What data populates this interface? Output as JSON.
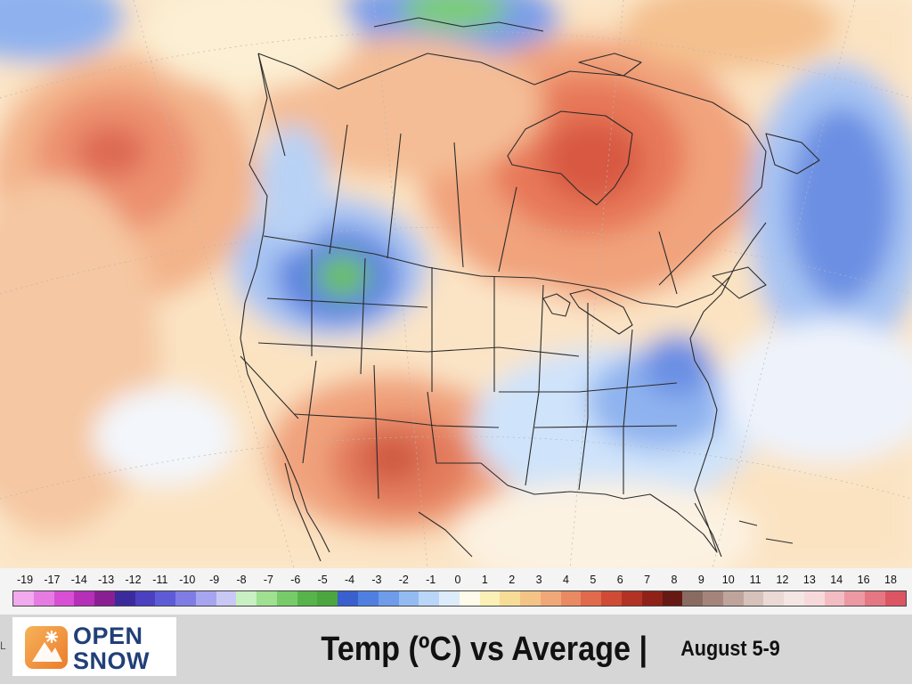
{
  "map": {
    "region": "North America",
    "anomaly_zones": [
      {
        "area": "Central North Pacific",
        "level": "warm",
        "peak_value": 7
      },
      {
        "area": "Eastern Canada / Hudson Bay",
        "level": "warm",
        "peak_value": 7
      },
      {
        "area": "Southwest US / New Mexico",
        "level": "warm",
        "peak_value": 7
      },
      {
        "area": "Northern Rockies / Montana-Idaho",
        "level": "cold",
        "peak_value": -6
      },
      {
        "area": "Western Arctic",
        "level": "cold",
        "peak_value": -6
      },
      {
        "area": "Southeast US / Virginia-Carolinas",
        "level": "cold",
        "peak_value": -3
      },
      {
        "area": "Western Atlantic off Canada",
        "level": "cold",
        "peak_value": -3
      },
      {
        "area": "Subtropical Pacific",
        "level": "cool",
        "peak_value": -1
      }
    ]
  },
  "legend": {
    "ticks": [
      "-19",
      "-17",
      "-14",
      "-13",
      "-12",
      "-11",
      "-10",
      "-9",
      "-8",
      "-7",
      "-6",
      "-5",
      "-4",
      "-3",
      "-2",
      "-1",
      "0",
      "1",
      "2",
      "3",
      "4",
      "5",
      "6",
      "7",
      "8",
      "9",
      "10",
      "11",
      "12",
      "13",
      "14",
      "16",
      "18"
    ],
    "colors": [
      "#f2a9ee",
      "#e67be2",
      "#d84fd5",
      "#b52fb8",
      "#8a1f94",
      "#3b2a9c",
      "#4a40c0",
      "#5e5bd6",
      "#7f7ce6",
      "#a7a5f0",
      "#c9c8f5",
      "#c8f0c2",
      "#9fe091",
      "#77cc69",
      "#57b44a",
      "#4ba63f",
      "#3a5fcf",
      "#4f7fe0",
      "#6e9ceb",
      "#93bbf2",
      "#b9d6f8",
      "#dcecfb",
      "#fffbea",
      "#fbf0b6",
      "#f7dc97",
      "#f4c487",
      "#f1a878",
      "#ea8a62",
      "#e06a4c",
      "#cf4b35",
      "#b33226",
      "#8e2218",
      "#661812",
      "#8a6b62",
      "#a4847b",
      "#bfa49c",
      "#d6c2bb",
      "#ead9d4",
      "#f3e6e3",
      "#f7d9dc",
      "#f3bcc3",
      "#ec99a3",
      "#e57783",
      "#dc5563"
    ]
  },
  "brand": {
    "top": "OPEN",
    "bottom": "SNOW",
    "icon": "snowflake-mountain-icon",
    "left_mark": "L"
  },
  "caption": {
    "title": "Temp (ºC) vs Average |",
    "dates": "August 5-9"
  },
  "colors": {
    "brand_navy": "#213f78",
    "brand_orange": "#ec7c2a"
  }
}
